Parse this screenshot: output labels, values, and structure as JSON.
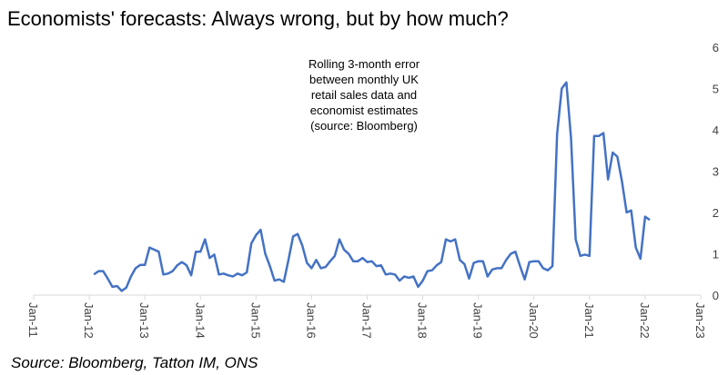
{
  "chart_data": {
    "type": "line",
    "title": "Economists' forecasts: Always wrong, but by how much?",
    "annotation": [
      "Rolling 3-month error",
      "between monthly UK",
      "retail sales data and",
      "economist estimates",
      "(source: Bloomberg)"
    ],
    "source": "Source: Bloomberg, Tatton IM, ONS",
    "categories": [
      "Jan-11",
      null,
      null,
      null,
      null,
      null,
      null,
      null,
      null,
      null,
      null,
      null,
      "Jan-12",
      null,
      null,
      null,
      null,
      null,
      null,
      null,
      null,
      null,
      null,
      null,
      "Jan-13",
      null,
      null,
      null,
      null,
      null,
      null,
      null,
      null,
      null,
      null,
      null,
      "Jan-14",
      null,
      null,
      null,
      null,
      null,
      null,
      null,
      null,
      null,
      null,
      null,
      "Jan-15",
      null,
      null,
      null,
      null,
      null,
      null,
      null,
      null,
      null,
      null,
      null,
      "Jan-16",
      null,
      null,
      null,
      null,
      null,
      null,
      null,
      null,
      null,
      null,
      null,
      "Jan-17",
      null,
      null,
      null,
      null,
      null,
      null,
      null,
      null,
      null,
      null,
      null,
      "Jan-18",
      null,
      null,
      null,
      null,
      null,
      null,
      null,
      null,
      null,
      null,
      null,
      "Jan-19",
      null,
      null,
      null,
      null,
      null,
      null,
      null,
      null,
      null,
      null,
      null,
      "Jan-20",
      null,
      null,
      null,
      null,
      null,
      null,
      null,
      null,
      null,
      null,
      null,
      "Jan-21",
      null,
      null,
      null,
      null,
      null,
      null,
      null,
      null,
      null,
      null,
      null,
      "Jan-22",
      null,
      null,
      null,
      null,
      null,
      null,
      null,
      null,
      null,
      null,
      null,
      "Jan-23"
    ],
    "series": [
      {
        "color": "#4472c4",
        "values": [
          null,
          null,
          null,
          null,
          null,
          null,
          null,
          null,
          null,
          null,
          null,
          null,
          null,
          0.5,
          0.58,
          0.58,
          0.4,
          0.2,
          0.22,
          0.1,
          0.18,
          0.45,
          0.65,
          0.73,
          0.73,
          1.15,
          1.1,
          1.05,
          0.5,
          0.52,
          0.58,
          0.72,
          0.8,
          0.72,
          0.48,
          1.05,
          1.05,
          1.35,
          0.9,
          0.98,
          0.5,
          0.52,
          0.48,
          0.45,
          0.52,
          0.48,
          0.55,
          1.25,
          1.45,
          1.58,
          1.0,
          0.7,
          0.35,
          0.38,
          0.32,
          0.85,
          1.42,
          1.48,
          1.2,
          0.78,
          0.65,
          0.85,
          0.65,
          0.68,
          0.82,
          0.95,
          1.35,
          1.1,
          1.0,
          0.82,
          0.82,
          0.9,
          0.8,
          0.82,
          0.7,
          0.72,
          0.5,
          0.52,
          0.5,
          0.35,
          0.45,
          0.42,
          0.45,
          0.2,
          0.35,
          0.58,
          0.6,
          0.72,
          0.8,
          1.35,
          1.3,
          1.35,
          0.85,
          0.75,
          0.4,
          0.78,
          0.82,
          0.82,
          0.45,
          0.62,
          0.65,
          0.65,
          0.85,
          1.0,
          1.05,
          0.7,
          0.38,
          0.8,
          0.82,
          0.82,
          0.65,
          0.6,
          0.7,
          3.9,
          5.0,
          5.15,
          3.8,
          1.35,
          0.95,
          0.98,
          0.95,
          3.85,
          3.85,
          3.92,
          2.8,
          3.45,
          3.35,
          2.75,
          2.0,
          2.05,
          1.15,
          0.88,
          1.9,
          1.82,
          null,
          null,
          null,
          null,
          null,
          null,
          null,
          null,
          null,
          null,
          null
        ]
      }
    ],
    "ylim": [
      0,
      6
    ],
    "yticks": [
      0,
      1,
      2,
      3,
      4,
      5,
      6
    ]
  }
}
